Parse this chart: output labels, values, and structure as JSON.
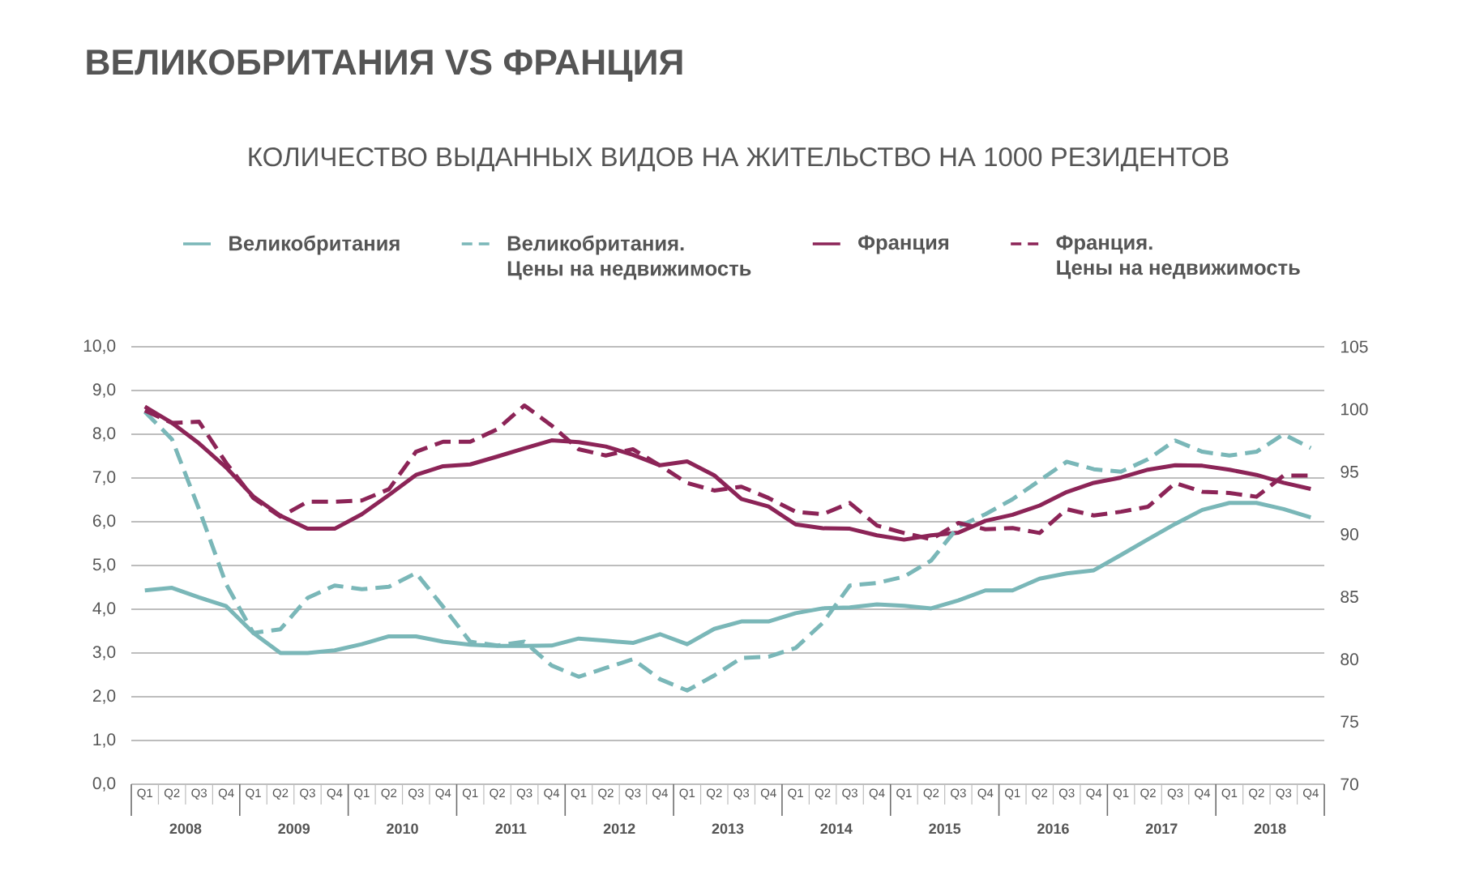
{
  "chart_data": {
    "type": "line",
    "title": "ВЕЛИКОБРИТАНИЯ VS ФРАНЦИЯ",
    "subtitle": "КОЛИЧЕСТВО ВЫДАННЫХ ВИДОВ НА ЖИТЕЛЬСТВО НА 1000 РЕЗИДЕНТОВ",
    "categories": [
      "Q1",
      "Q2",
      "Q3",
      "Q4",
      "Q1",
      "Q2",
      "Q3",
      "Q4",
      "Q1",
      "Q2",
      "Q3",
      "Q4",
      "Q1",
      "Q2",
      "Q3",
      "Q4",
      "Q1",
      "Q2",
      "Q3",
      "Q4",
      "Q1",
      "Q2",
      "Q3",
      "Q4",
      "Q1",
      "Q2",
      "Q3",
      "Q4",
      "Q1",
      "Q2",
      "Q3",
      "Q4",
      "Q1",
      "Q2",
      "Q3",
      "Q4",
      "Q1",
      "Q2",
      "Q3",
      "Q4",
      "Q1",
      "Q2",
      "Q3",
      "Q4"
    ],
    "annotations": [
      "2008",
      "2009",
      "2010",
      "2011",
      "2012",
      "2013",
      "2014",
      "2015",
      "2016",
      "2017",
      "2018"
    ],
    "series": [
      {
        "name": "Великобритания",
        "color": "#7ab7b8",
        "line_style": "solid",
        "values": [
          4.43,
          4.49,
          4.27,
          4.07,
          3.46,
          3.0,
          3.0,
          3.06,
          3.2,
          3.38,
          3.38,
          3.26,
          3.19,
          3.16,
          3.16,
          3.17,
          3.33,
          3.28,
          3.23,
          3.43,
          3.2,
          3.55,
          3.72,
          3.72,
          3.91,
          4.02,
          4.04,
          4.11,
          4.08,
          4.02,
          4.2,
          4.43,
          4.43,
          4.7,
          4.82,
          4.89,
          5.24,
          5.6,
          5.95,
          6.27,
          6.43,
          6.43,
          6.29,
          6.1
        ]
      },
      {
        "name": "Великобритания.\nЦены на недвижимость",
        "color": "#7ab7b8",
        "line_style": "dashed",
        "axis": "y2",
        "values": [
          99.8,
          97.6,
          92.0,
          86.0,
          82.1,
          82.4,
          84.9,
          85.9,
          85.6,
          85.8,
          86.9,
          84.2,
          81.4,
          81.1,
          81.4,
          79.5,
          78.6,
          79.3,
          80.0,
          78.4,
          77.5,
          78.7,
          80.1,
          80.2,
          80.9,
          82.9,
          85.9,
          86.1,
          86.6,
          87.9,
          90.6,
          91.6,
          92.8,
          94.3,
          95.8,
          95.2,
          95.0,
          96.0,
          97.5,
          96.6,
          96.3,
          96.6,
          98.0,
          96.9
        ]
      },
      {
        "name": "Франция",
        "color": "#8c2457",
        "line_style": "solid",
        "values": [
          8.63,
          8.26,
          7.79,
          7.24,
          6.58,
          6.14,
          5.84,
          5.84,
          6.17,
          6.61,
          7.07,
          7.27,
          7.31,
          7.49,
          7.68,
          7.86,
          7.82,
          7.72,
          7.53,
          7.29,
          7.38,
          7.06,
          6.52,
          6.35,
          5.94,
          5.85,
          5.84,
          5.69,
          5.59,
          5.69,
          5.75,
          6.02,
          6.16,
          6.37,
          6.68,
          6.89,
          7.01,
          7.19,
          7.29,
          7.28,
          7.19,
          7.07,
          6.89,
          6.75
        ]
      },
      {
        "name": "Франция.\nЦены на недвижимость",
        "color": "#8c2457",
        "line_style": "dashed",
        "axis": "y2",
        "values": [
          99.9,
          98.9,
          99.0,
          95.7,
          92.9,
          91.4,
          92.6,
          92.6,
          92.7,
          93.6,
          96.6,
          97.4,
          97.4,
          98.4,
          100.3,
          98.7,
          96.8,
          96.3,
          96.8,
          95.5,
          94.1,
          93.5,
          93.8,
          92.9,
          91.8,
          91.6,
          92.5,
          90.7,
          90.1,
          89.6,
          90.9,
          90.4,
          90.5,
          90.1,
          92.0,
          91.5,
          91.8,
          92.2,
          94.1,
          93.4,
          93.3,
          93.0,
          94.7,
          94.7
        ]
      }
    ],
    "ylim": [
      0,
      10
    ],
    "yticks": [
      {
        "value": 0,
        "label": "0,0"
      },
      {
        "value": 1,
        "label": "1,0"
      },
      {
        "value": 2,
        "label": "2,0"
      },
      {
        "value": 3,
        "label": "3,0"
      },
      {
        "value": 4,
        "label": "4,0"
      },
      {
        "value": 5,
        "label": "5,0"
      },
      {
        "value": 6,
        "label": "6,0"
      },
      {
        "value": 7,
        "label": "7,0"
      },
      {
        "value": 8,
        "label": "8,0"
      },
      {
        "value": 9,
        "label": "9,0"
      },
      {
        "value": 10,
        "label": "10,0"
      }
    ],
    "y2lim": [
      70,
      105
    ],
    "y2ticks": [
      70,
      75,
      80,
      85,
      90,
      95,
      100,
      105
    ],
    "grid": "y",
    "legend": "top"
  }
}
